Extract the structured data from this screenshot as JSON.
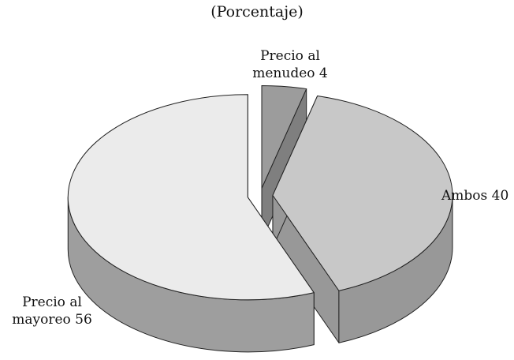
{
  "chart_data": {
    "type": "pie",
    "title": "(Porcentaje)",
    "style": "3d-exploded",
    "slices": [
      {
        "label": "Precio al menudeo",
        "value": 4,
        "label_lines": [
          "Precio al",
          "menudeo 4"
        ],
        "color": "#9c9c9c",
        "side_color": "#7f7f7f"
      },
      {
        "label": "Ambos",
        "value": 40,
        "label_lines": [
          "Ambos 40"
        ],
        "color": "#c8c8c8",
        "side_color": "#989898"
      },
      {
        "label": "Precio al mayoreo",
        "value": 56,
        "label_lines": [
          "Precio al",
          "mayoreo 56"
        ],
        "color": "#ebebeb",
        "side_color": "#9e9e9e"
      }
    ]
  }
}
